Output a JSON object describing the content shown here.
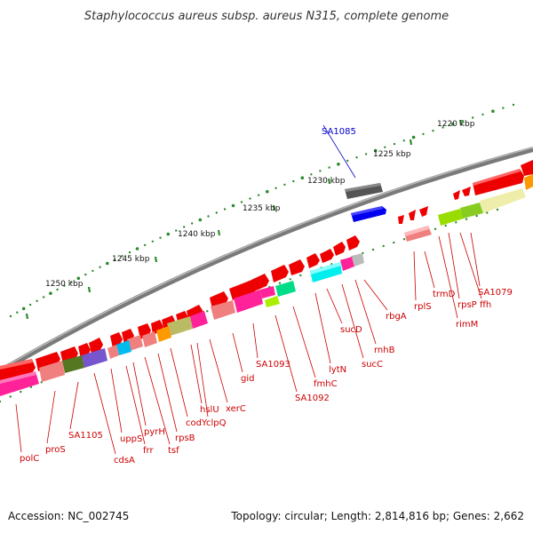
{
  "title": "Staphylococcus aureus subsp. aureus N315, complete genome",
  "footer": {
    "accession": "Accession: NC_002745",
    "summary": "Topology: circular; Length: 2,814,816 bp; Genes: 2,662"
  },
  "colors": {
    "backbone": "#8a8a8a",
    "tick": "#2e8b2e",
    "label_default": "#cc0000",
    "label_highlight": "#0000cc",
    "gene_default": "#ee0000"
  },
  "scale": {
    "unit": "kbp",
    "labels": [
      {
        "text": "1220 kbp"
      },
      {
        "text": "1225 kbp"
      },
      {
        "text": "1230 kbp"
      },
      {
        "text": "1235 kbp"
      },
      {
        "text": "1240 kbp"
      },
      {
        "text": "1245 kbp"
      },
      {
        "text": "1250 kbp"
      }
    ]
  },
  "labels": [
    {
      "text": "SA1085",
      "color": "#0000cc"
    },
    {
      "text": "SA1079"
    },
    {
      "text": "ffh"
    },
    {
      "text": "rpsP"
    },
    {
      "text": "rimM"
    },
    {
      "text": "trmD"
    },
    {
      "text": "rplS"
    },
    {
      "text": "rbgA"
    },
    {
      "text": "rnhB"
    },
    {
      "text": "sucC"
    },
    {
      "text": "sucD"
    },
    {
      "text": "lytN"
    },
    {
      "text": "fmhC"
    },
    {
      "text": "SA1092"
    },
    {
      "text": "SA1093"
    },
    {
      "text": "gid"
    },
    {
      "text": "xerC"
    },
    {
      "text": "hslU"
    },
    {
      "text": "clpQ"
    },
    {
      "text": "codY"
    },
    {
      "text": "rpsB"
    },
    {
      "text": "tsf"
    },
    {
      "text": "pyrH"
    },
    {
      "text": "frr"
    },
    {
      "text": "uppS"
    },
    {
      "text": "cdsA"
    },
    {
      "text": "SA1105"
    },
    {
      "text": "proS"
    },
    {
      "text": "polC"
    }
  ]
}
